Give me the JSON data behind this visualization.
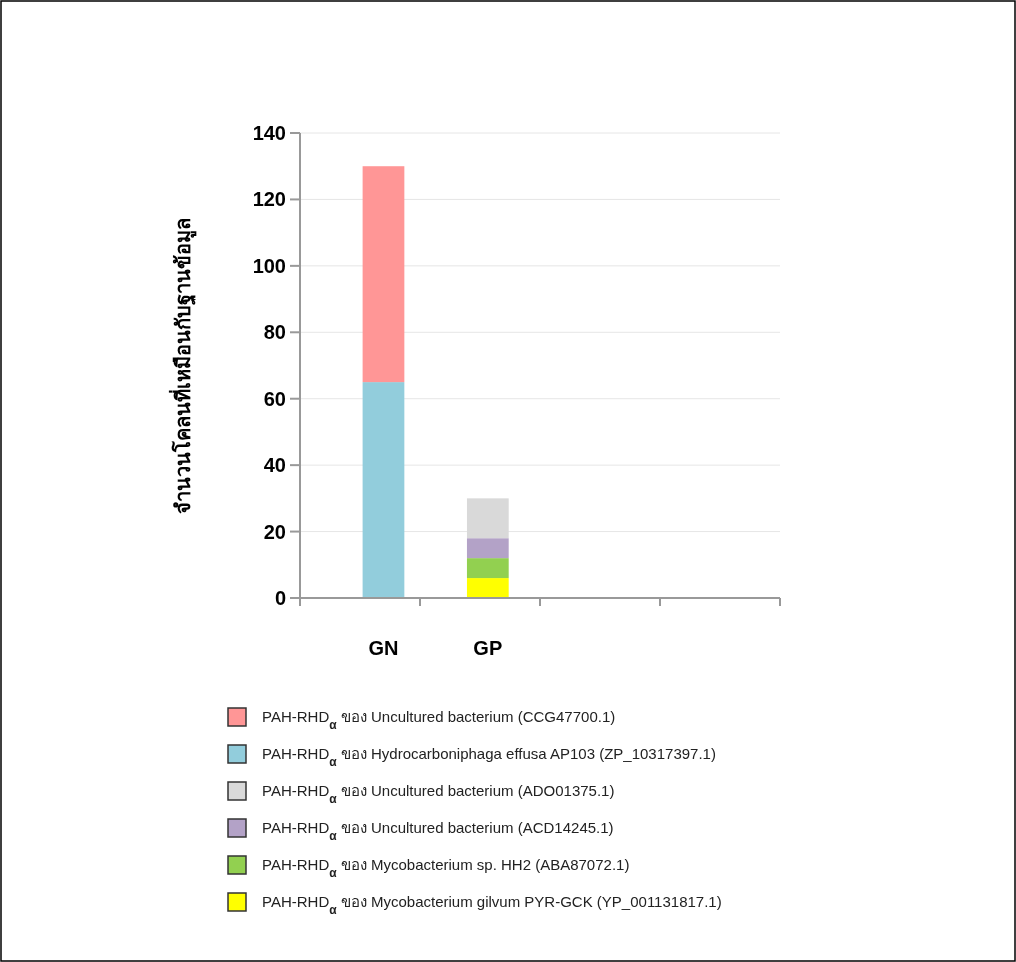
{
  "chart_data": {
    "type": "bar",
    "stacked": true,
    "ylabel": "จำนวนโคลนที่เหมือนกับฐานข้อมูล",
    "categories": [
      "GN",
      "GP",
      null,
      null
    ],
    "ylim": [
      0,
      140
    ],
    "yticks": [
      0,
      20,
      40,
      60,
      80,
      100,
      120,
      140
    ],
    "grid": "y",
    "legend": "bottom",
    "series": [
      {
        "name": "PAH-RHD$_{α}$ ของ Mycobacterium gilvum PYR-GCK (YP_001131817.1)",
        "color": "#ffff00",
        "values": [
          null,
          6,
          null,
          null
        ]
      },
      {
        "name": "PAH-RHD$_{α}$ ของ Mycobacterium sp. HH2 (ABA87072.1)",
        "color": "#92d050",
        "values": [
          null,
          6,
          null,
          null
        ]
      },
      {
        "name": "PAH-RHD$_{α}$ ของ Uncultured bacterium (ACD14245.1)",
        "color": "#b3a2c7",
        "values": [
          null,
          6,
          null,
          null
        ]
      },
      {
        "name": "PAH-RHD$_{α}$ ของ Uncultured bacterium (ADO01375.1)",
        "color": "#d9d9d9",
        "values": [
          null,
          12,
          null,
          null
        ]
      },
      {
        "name": "PAH-RHD$_{α}$ ของ Hydrocarboniphaga effusa AP103 (ZP_10317397.1)",
        "color": "#92cddc",
        "values": [
          65,
          null,
          null,
          null
        ]
      },
      {
        "name": "PAH-RHD$_{α}$ ของ Uncultured bacterium (CCG47700.1)",
        "color": "#ff9696",
        "values": [
          65,
          null,
          null,
          null
        ]
      }
    ]
  }
}
